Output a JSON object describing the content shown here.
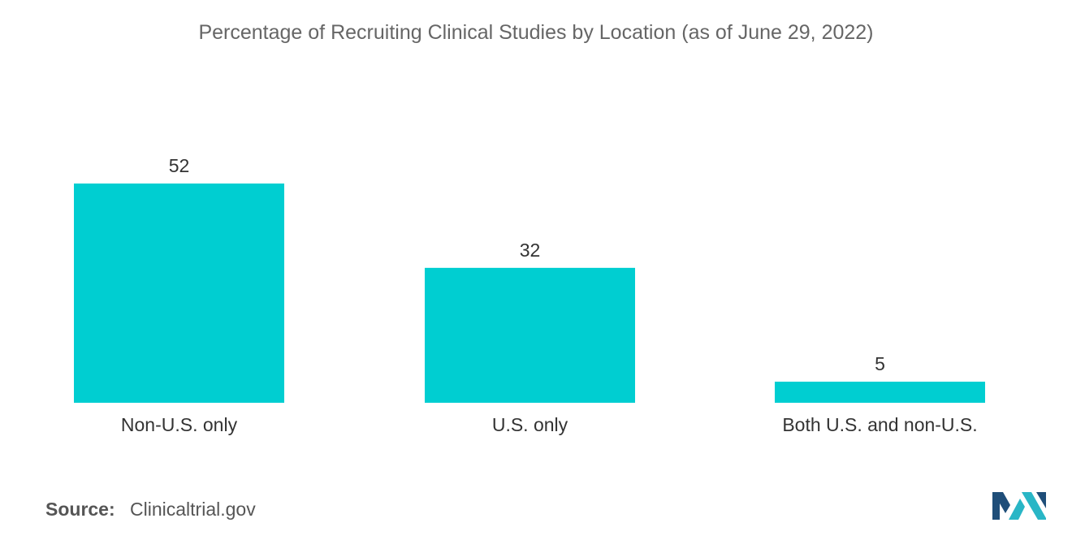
{
  "chart_data": {
    "type": "bar",
    "title": "Percentage of Recruiting Clinical Studies by Location (as of June 29, 2022)",
    "xlabel": "",
    "ylabel": "",
    "categories": [
      "Non-U.S. only",
      "U.S. only",
      "Both U.S. and non-U.S."
    ],
    "values": [
      52,
      32,
      5
    ],
    "ylim": [
      0,
      52
    ],
    "grid": false,
    "legend": "none",
    "data_labels": true
  },
  "source": {
    "label": "Source:",
    "value": "Clinicaltrial.gov"
  },
  "colors": {
    "bar": "#00ced1",
    "title_text": "#666666",
    "label_text": "#333333",
    "logo_dark": "#1f4e79",
    "logo_light": "#29b6c6"
  },
  "logo_icon": "mordor-intelligence-logo-icon"
}
